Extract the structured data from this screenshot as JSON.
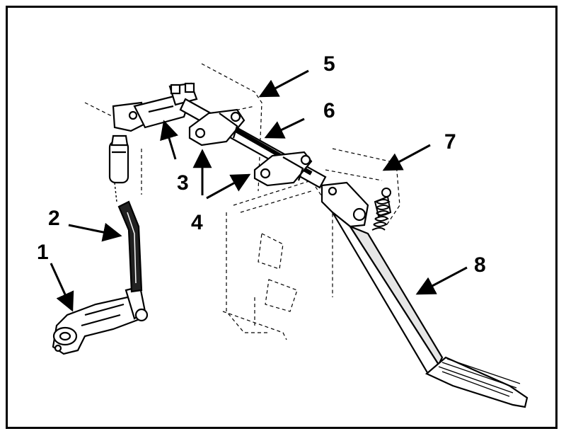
{
  "diagram": {
    "callouts": [
      {
        "id": "1",
        "text": "1"
      },
      {
        "id": "2",
        "text": "2"
      },
      {
        "id": "3",
        "text": "3"
      },
      {
        "id": "4",
        "text": "4"
      },
      {
        "id": "5",
        "text": "5"
      },
      {
        "id": "6",
        "text": "6"
      },
      {
        "id": "7",
        "text": "7"
      },
      {
        "id": "8",
        "text": "8"
      }
    ],
    "colors": {
      "line": "#000000",
      "fill": "#ffffff",
      "shade": "#d9d9d9"
    }
  }
}
